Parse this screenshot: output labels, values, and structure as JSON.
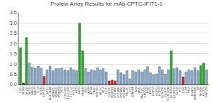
{
  "chart_data": {
    "type": "bar",
    "title": "Protein Array Results for mAb CPTC-IFIT1-1",
    "categories": [
      "U251",
      "SF268",
      "SF295",
      "SF539",
      "SNB19",
      "SNB75",
      "U118",
      "BT549",
      "HS578T",
      "MCF7",
      "MCF7ADR",
      "MDA231",
      "MDA435",
      "MDA468",
      "T47D",
      "COLO205",
      "HCC2998",
      "HCT116",
      "HCT15",
      "HT29",
      "KM12",
      "SW620",
      "786O",
      "A498",
      "ACHN",
      "CAKI1",
      "RXF393",
      "SN12C",
      "TK10",
      "UO31",
      "IGROV1",
      "M19MEL",
      "OVCAR3",
      "OVCAR4",
      "OVCAR5",
      "OVCAR8",
      "SKOV3",
      "LOX",
      "MALME",
      "M14",
      "SK23",
      "UACC257",
      "UACC62",
      "A549",
      "EKVX",
      "HOP18",
      "HOP62",
      "HOP92",
      "NCIH226",
      "NCIH23",
      "NCIH322M",
      "NCIH460",
      "NCIH522",
      "DU145",
      "PC3",
      "K562",
      "CCRF",
      "HL60",
      "MOLT4",
      "RPMI8226",
      "SR",
      "SF268b",
      "MCF7b",
      "SW620b"
    ],
    "values": [
      1.8,
      0.08,
      2.3,
      1.05,
      0.85,
      0.8,
      0.9,
      0.8,
      0.4,
      0.72,
      0.9,
      0.68,
      0.78,
      0.78,
      0.82,
      0.72,
      0.68,
      0.82,
      0.72,
      0.68,
      3.0,
      1.65,
      0.78,
      0.62,
      0.72,
      0.68,
      0.82,
      0.72,
      0.78,
      0.62,
      0.18,
      0.22,
      0.18,
      0.72,
      0.58,
      0.48,
      0.68,
      0.28,
      0.68,
      0.62,
      0.72,
      0.62,
      0.72,
      0.88,
      0.58,
      0.48,
      0.52,
      0.88,
      0.72,
      0.52,
      0.72,
      1.65,
      0.78,
      0.82,
      0.68,
      0.38,
      0.62,
      0.72,
      0.68,
      0.82,
      0.68,
      0.92,
      1.05,
      0.72
    ],
    "colors": [
      "#22aa22",
      "#444444",
      "#22aa22",
      "#88aacc",
      "#88aacc",
      "#88aacc",
      "#88aacc",
      "#88aacc",
      "#cc2222",
      "#88aacc",
      "#88aacc",
      "#88aacc",
      "#88aacc",
      "#88aacc",
      "#88aacc",
      "#88aacc",
      "#88aacc",
      "#88aacc",
      "#88aacc",
      "#88aacc",
      "#22aa22",
      "#22aa22",
      "#88aacc",
      "#88aacc",
      "#88aacc",
      "#88aacc",
      "#88aacc",
      "#88aacc",
      "#88aacc",
      "#88aacc",
      "#cc2222",
      "#cc2222",
      "#cc2222",
      "#88aacc",
      "#88aacc",
      "#88aacc",
      "#88aacc",
      "#88aacc",
      "#88aacc",
      "#88aacc",
      "#88aacc",
      "#88aacc",
      "#88aacc",
      "#88aacc",
      "#88aacc",
      "#88aacc",
      "#88aacc",
      "#88aacc",
      "#88aacc",
      "#88aacc",
      "#88aacc",
      "#22aa22",
      "#88aacc",
      "#88aacc",
      "#88aacc",
      "#cc2222",
      "#88aacc",
      "#88aacc",
      "#88aacc",
      "#88aacc",
      "#88aacc",
      "#22aa22",
      "#22aa22",
      "#88aacc"
    ],
    "ylim": [
      0.0,
      3.5
    ],
    "yticks": [
      {
        "value": 0,
        "label": "0.0"
      },
      0.5,
      {
        "value": 1,
        "label": "1.0"
      },
      1.5,
      {
        "value": 2,
        "label": "2.0"
      },
      2.5,
      {
        "value": 3,
        "label": "3.0"
      },
      3.5
    ],
    "grid": true
  }
}
